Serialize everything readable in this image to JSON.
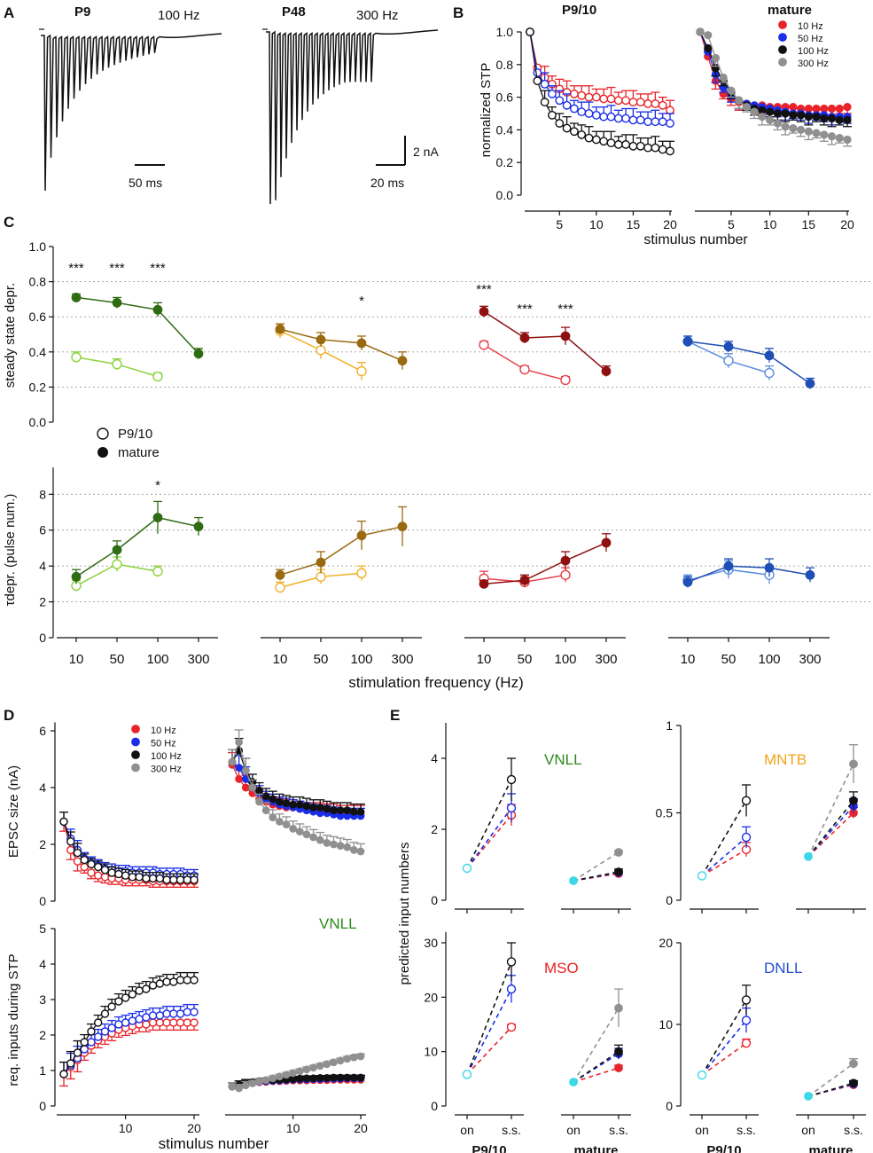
{
  "colors": {
    "vnll_mature": "#2e6b12",
    "vnll_p9": "#8cd23a",
    "mntb_mature": "#9a6a10",
    "mntb_p9": "#f2b02a",
    "mso_mature": "#8f1010",
    "mso_p9": "#e8404a",
    "dnll_mature": "#1f4fb5",
    "dnll_p9": "#5b8ee0",
    "hz10": "#e8242a",
    "hz50": "#1a2ee8",
    "hz100": "#111111",
    "hz300": "#909090",
    "onset": "#3ad8e8"
  },
  "panelA": {
    "letter": "A",
    "left_age": "P9",
    "left_freq": "100 Hz",
    "left_scale": "50 ms",
    "right_age": "P48",
    "right_freq": "300 Hz",
    "right_scale_time": "20 ms",
    "right_scale_amp": "2 nA",
    "left_pulses": 20,
    "right_pulses": 20
  },
  "panelB": {
    "letter": "B",
    "left_title": "P9/10",
    "right_title": "mature",
    "ylabel": "normalized STP",
    "xlabel": "stimulus number",
    "yticks": [
      "0.0",
      "0.2",
      "0.4",
      "0.6",
      "0.8",
      "1.0"
    ],
    "xticks": [
      "5",
      "10",
      "15",
      "20"
    ],
    "legend": [
      "10 Hz",
      "50 Hz",
      "100 Hz",
      "300 Hz"
    ]
  },
  "panelC": {
    "letter": "C",
    "top_ylabel": "steady state depr.",
    "top_yticks": [
      "0.0",
      "0.2",
      "0.4",
      "0.6",
      "0.8",
      "1.0"
    ],
    "bottom_ylabel": "τdepr. (pulse num.)",
    "bottom_yticks": [
      "0",
      "2",
      "4",
      "6",
      "8"
    ],
    "xticks": [
      "10",
      "50",
      "100",
      "300"
    ],
    "xlabel": "stimulation frequency (Hz)",
    "legend": [
      "P9/10",
      "mature"
    ],
    "sig_top": [
      [
        "***",
        "***",
        "***"
      ],
      [
        "*"
      ],
      [
        "***",
        "***",
        "***"
      ]
    ],
    "sig_bottom": "*"
  },
  "panelD": {
    "letter": "D",
    "top_ylabel": "EPSC size (nA)",
    "top_yticks": [
      "0",
      "2",
      "4",
      "6"
    ],
    "bottom_ylabel": "req. inputs during STP",
    "bottom_yticks": [
      "0",
      "1",
      "2",
      "3",
      "4",
      "5"
    ],
    "xticks": [
      "10",
      "20"
    ],
    "xlabel": "stimulus number",
    "legend": [
      "10 Hz",
      "50 Hz",
      "100 Hz",
      "300 Hz"
    ],
    "nucleus": "VNLL"
  },
  "panelE": {
    "letter": "E",
    "ylabel": "predicted input numbers",
    "xticks": [
      "on",
      "s.s."
    ],
    "group_labels": [
      "P9/10",
      "mature"
    ],
    "nuclei": [
      "VNLL",
      "MNTB",
      "MSO",
      "DNLL"
    ],
    "vnll_yticks": [
      "0",
      "2",
      "4"
    ],
    "mntb_yticks": [
      "0",
      "0.5",
      "1"
    ],
    "mso_yticks": [
      "0",
      "10",
      "20",
      "30"
    ],
    "dnll_yticks": [
      "0",
      "10",
      "20"
    ]
  },
  "chart_data": [
    {
      "type": "line",
      "panel": "B-left",
      "title": "P9/10",
      "xlabel": "stimulus number",
      "ylabel": "normalized STP",
      "ylim": [
        0,
        1.0
      ],
      "xlim": [
        1,
        20
      ],
      "series": [
        {
          "name": "10 Hz",
          "values": [
            1.0,
            0.78,
            0.72,
            0.68,
            0.65,
            0.63,
            0.62,
            0.61,
            0.6,
            0.6,
            0.59,
            0.59,
            0.58,
            0.58,
            0.57,
            0.57,
            0.56,
            0.56,
            0.55,
            0.52
          ]
        },
        {
          "name": "50 Hz",
          "values": [
            1.0,
            0.75,
            0.68,
            0.62,
            0.58,
            0.55,
            0.53,
            0.51,
            0.5,
            0.49,
            0.48,
            0.48,
            0.47,
            0.47,
            0.46,
            0.46,
            0.45,
            0.45,
            0.45,
            0.44
          ]
        },
        {
          "name": "100 Hz",
          "values": [
            1.0,
            0.7,
            0.57,
            0.49,
            0.44,
            0.41,
            0.39,
            0.37,
            0.35,
            0.34,
            0.33,
            0.32,
            0.31,
            0.31,
            0.3,
            0.3,
            0.29,
            0.29,
            0.28,
            0.27
          ]
        }
      ]
    },
    {
      "type": "line",
      "panel": "B-right",
      "title": "mature",
      "xlabel": "stimulus number",
      "ylabel": "normalized STP",
      "ylim": [
        0,
        1.0
      ],
      "xlim": [
        1,
        20
      ],
      "series": [
        {
          "name": "10 Hz",
          "values": [
            1.0,
            0.85,
            0.7,
            0.62,
            0.59,
            0.57,
            0.56,
            0.55,
            0.55,
            0.54,
            0.54,
            0.54,
            0.54,
            0.53,
            0.53,
            0.53,
            0.53,
            0.53,
            0.53,
            0.54
          ]
        },
        {
          "name": "50 Hz",
          "values": [
            1.0,
            0.88,
            0.74,
            0.66,
            0.61,
            0.58,
            0.56,
            0.55,
            0.54,
            0.53,
            0.52,
            0.51,
            0.5,
            0.5,
            0.49,
            0.49,
            0.49,
            0.48,
            0.48,
            0.48
          ]
        },
        {
          "name": "100 Hz",
          "values": [
            1.0,
            0.9,
            0.78,
            0.7,
            0.63,
            0.58,
            0.55,
            0.53,
            0.52,
            0.51,
            0.5,
            0.5,
            0.49,
            0.49,
            0.48,
            0.48,
            0.47,
            0.47,
            0.46,
            0.46
          ]
        },
        {
          "name": "300 Hz",
          "values": [
            1.0,
            0.98,
            0.84,
            0.72,
            0.64,
            0.58,
            0.54,
            0.51,
            0.48,
            0.46,
            0.44,
            0.42,
            0.41,
            0.4,
            0.39,
            0.38,
            0.37,
            0.36,
            0.35,
            0.34
          ]
        }
      ]
    },
    {
      "type": "line",
      "panel": "C-top",
      "ylabel": "steady state depr.",
      "ylim": [
        0,
        1.0
      ],
      "categories": [
        "10",
        "50",
        "100",
        "300"
      ],
      "groups": [
        {
          "name": "VNLL",
          "p9": [
            0.37,
            0.33,
            0.26
          ],
          "p9_err": [
            0.03,
            0.03,
            0.02
          ],
          "mature": [
            0.71,
            0.68,
            0.64,
            0.39
          ],
          "mature_err": [
            0.02,
            0.03,
            0.04,
            0.03
          ]
        },
        {
          "name": "MNTB",
          "p9": [
            0.52,
            0.41,
            0.29
          ],
          "p9_err": [
            0.04,
            0.05,
            0.05
          ],
          "mature": [
            0.53,
            0.47,
            0.45,
            0.35
          ],
          "mature_err": [
            0.03,
            0.04,
            0.04,
            0.05
          ]
        },
        {
          "name": "MSO",
          "p9": [
            0.44,
            0.3,
            0.24
          ],
          "p9_err": [
            0.02,
            0.02,
            0.02
          ],
          "mature": [
            0.63,
            0.48,
            0.49,
            0.29
          ],
          "mature_err": [
            0.03,
            0.03,
            0.05,
            0.03
          ]
        },
        {
          "name": "DNLL",
          "p9": [
            0.46,
            0.35,
            0.28
          ],
          "p9_err": [
            0.03,
            0.04,
            0.04
          ],
          "mature": [
            0.46,
            0.43,
            0.38,
            0.22
          ],
          "mature_err": [
            0.03,
            0.03,
            0.04,
            0.03
          ]
        }
      ]
    },
    {
      "type": "line",
      "panel": "C-bottom",
      "ylabel": "τdepr. (pulse num.)",
      "ylim": [
        0,
        9.5
      ],
      "categories": [
        "10",
        "50",
        "100",
        "300"
      ],
      "groups": [
        {
          "name": "VNLL",
          "p9": [
            2.9,
            4.1,
            3.7
          ],
          "p9_err": [
            0.3,
            0.4,
            0.3
          ],
          "mature": [
            3.4,
            4.9,
            6.7,
            6.2
          ],
          "mature_err": [
            0.4,
            0.5,
            0.9,
            0.5
          ]
        },
        {
          "name": "MNTB",
          "p9": [
            2.8,
            3.4,
            3.6
          ],
          "p9_err": [
            0.3,
            0.4,
            0.4
          ],
          "mature": [
            3.5,
            4.2,
            5.7,
            6.2
          ],
          "mature_err": [
            0.3,
            0.6,
            0.8,
            1.1
          ]
        },
        {
          "name": "MSO",
          "p9": [
            3.3,
            3.1,
            3.5
          ],
          "p9_err": [
            0.4,
            0.3,
            0.4
          ],
          "mature": [
            3.0,
            3.2,
            4.3,
            5.3
          ],
          "mature_err": [
            0.2,
            0.3,
            0.5,
            0.5
          ]
        },
        {
          "name": "DNLL",
          "p9": [
            3.2,
            3.8,
            3.5
          ],
          "p9_err": [
            0.3,
            0.5,
            0.5
          ],
          "mature": [
            3.1,
            4.0,
            3.9,
            3.5
          ],
          "mature_err": [
            0.3,
            0.4,
            0.5,
            0.4
          ]
        }
      ]
    },
    {
      "type": "line",
      "panel": "D-top",
      "ylabel": "EPSC size (nA)",
      "xlabel": "stimulus number",
      "ylim": [
        0,
        6.5
      ],
      "p9_series": [
        {
          "name": "10 Hz",
          "values": [
            2.8,
            1.8,
            1.4,
            1.2,
            1.0,
            0.9,
            0.85,
            0.8,
            0.8,
            0.75,
            0.75,
            0.75,
            0.75,
            0.7,
            0.7,
            0.7,
            0.7,
            0.7,
            0.7,
            0.7
          ]
        },
        {
          "name": "50 Hz",
          "values": [
            2.8,
            2.2,
            1.8,
            1.5,
            1.35,
            1.25,
            1.15,
            1.1,
            1.05,
            1.05,
            1.0,
            1.0,
            1.0,
            1.0,
            0.95,
            0.95,
            0.95,
            0.95,
            0.9,
            0.9
          ]
        },
        {
          "name": "100 Hz",
          "values": [
            2.8,
            2.1,
            1.7,
            1.45,
            1.3,
            1.2,
            1.1,
            1.0,
            0.95,
            0.9,
            0.85,
            0.85,
            0.8,
            0.8,
            0.8,
            0.75,
            0.75,
            0.75,
            0.75,
            0.75
          ]
        }
      ],
      "mature_series": [
        {
          "name": "10 Hz",
          "values": [
            4.8,
            4.3,
            4.0,
            3.8,
            3.6,
            3.5,
            3.4,
            3.35,
            3.3,
            3.3,
            3.25,
            3.2,
            3.2,
            3.2,
            3.15,
            3.15,
            3.1,
            3.1,
            3.1,
            3.1
          ]
        },
        {
          "name": "50 Hz",
          "values": [
            4.9,
            4.7,
            4.3,
            4.0,
            3.8,
            3.6,
            3.5,
            3.4,
            3.35,
            3.3,
            3.25,
            3.2,
            3.15,
            3.1,
            3.1,
            3.05,
            3.0,
            3.0,
            3.0,
            3.0
          ]
        },
        {
          "name": "100 Hz",
          "values": [
            4.9,
            5.3,
            4.6,
            4.2,
            3.9,
            3.7,
            3.6,
            3.5,
            3.45,
            3.4,
            3.4,
            3.35,
            3.3,
            3.3,
            3.25,
            3.2,
            3.2,
            3.2,
            3.15,
            3.15
          ]
        },
        {
          "name": "300 Hz",
          "values": [
            4.9,
            5.6,
            4.6,
            4.0,
            3.5,
            3.2,
            2.95,
            2.8,
            2.7,
            2.55,
            2.45,
            2.35,
            2.25,
            2.15,
            2.05,
            2.0,
            1.95,
            1.9,
            1.8,
            1.75
          ]
        }
      ]
    },
    {
      "type": "line",
      "panel": "D-bottom",
      "title": "VNLL",
      "ylabel": "req. inputs during STP",
      "xlabel": "stimulus number",
      "ylim": [
        0,
        5
      ],
      "p9_series": [
        {
          "name": "10 Hz",
          "values": [
            0.9,
            1.1,
            1.3,
            1.5,
            1.7,
            1.85,
            1.95,
            2.05,
            2.15,
            2.2,
            2.25,
            2.3,
            2.3,
            2.35,
            2.35,
            2.35,
            2.35,
            2.35,
            2.35,
            2.35
          ]
        },
        {
          "name": "50 Hz",
          "values": [
            0.9,
            1.15,
            1.35,
            1.6,
            1.8,
            1.95,
            2.1,
            2.2,
            2.3,
            2.35,
            2.4,
            2.45,
            2.5,
            2.55,
            2.55,
            2.6,
            2.6,
            2.6,
            2.65,
            2.65
          ]
        },
        {
          "name": "100 Hz",
          "values": [
            0.9,
            1.2,
            1.5,
            1.8,
            2.1,
            2.35,
            2.6,
            2.8,
            2.95,
            3.05,
            3.15,
            3.25,
            3.3,
            3.4,
            3.45,
            3.5,
            3.5,
            3.55,
            3.55,
            3.55
          ]
        }
      ],
      "mature_series": [
        {
          "name": "10 Hz",
          "values": [
            0.55,
            0.6,
            0.62,
            0.65,
            0.67,
            0.68,
            0.7,
            0.7,
            0.71,
            0.72,
            0.72,
            0.72,
            0.73,
            0.73,
            0.73,
            0.74,
            0.74,
            0.74,
            0.74,
            0.74
          ]
        },
        {
          "name": "50 Hz",
          "values": [
            0.55,
            0.6,
            0.63,
            0.66,
            0.68,
            0.7,
            0.71,
            0.72,
            0.73,
            0.74,
            0.75,
            0.75,
            0.76,
            0.76,
            0.77,
            0.77,
            0.77,
            0.78,
            0.78,
            0.78
          ]
        },
        {
          "name": "100 Hz",
          "values": [
            0.55,
            0.6,
            0.64,
            0.67,
            0.7,
            0.72,
            0.73,
            0.74,
            0.75,
            0.76,
            0.77,
            0.78,
            0.78,
            0.79,
            0.79,
            0.8,
            0.8,
            0.8,
            0.8,
            0.8
          ]
        },
        {
          "name": "300 Hz",
          "values": [
            0.55,
            0.5,
            0.58,
            0.64,
            0.69,
            0.73,
            0.78,
            0.83,
            0.88,
            0.93,
            0.98,
            1.03,
            1.08,
            1.13,
            1.18,
            1.23,
            1.28,
            1.33,
            1.37,
            1.4
          ]
        }
      ]
    },
    {
      "type": "line",
      "panel": "E",
      "ylabel": "predicted input numbers",
      "categories": [
        "on",
        "s.s."
      ],
      "groups": [
        {
          "name": "VNLL",
          "ylim": [
            0,
            5
          ],
          "p9_on": 0.9,
          "p9_ss": {
            "10 Hz": 2.4,
            "50 Hz": 2.6,
            "100 Hz": 3.4
          },
          "p9_ss_err": {
            "10 Hz": 0.3,
            "50 Hz": 0.4,
            "100 Hz": 0.6
          },
          "mature_on": 0.55,
          "mature_ss": {
            "10 Hz": 0.75,
            "50 Hz": 0.78,
            "100 Hz": 0.8,
            "300 Hz": 1.35
          },
          "mature_ss_err": {
            "10 Hz": 0.05,
            "50 Hz": 0.05,
            "100 Hz": 0.08,
            "300 Hz": 0.05
          }
        },
        {
          "name": "MNTB",
          "ylim": [
            0,
            1
          ],
          "p9_on": 0.14,
          "p9_ss": {
            "10 Hz": 0.29,
            "50 Hz": 0.36,
            "100 Hz": 0.57
          },
          "p9_ss_err": {
            "10 Hz": 0.04,
            "50 Hz": 0.06,
            "100 Hz": 0.09
          },
          "mature_on": 0.25,
          "mature_ss": {
            "10 Hz": 0.5,
            "50 Hz": 0.54,
            "100 Hz": 0.57,
            "300 Hz": 0.78
          },
          "mature_ss_err": {
            "10 Hz": 0.03,
            "50 Hz": 0.04,
            "100 Hz": 0.05,
            "300 Hz": 0.11
          }
        },
        {
          "name": "MSO",
          "ylim": [
            0,
            32
          ],
          "p9_on": 5.8,
          "p9_ss": {
            "10 Hz": 14.5,
            "50 Hz": 21.5,
            "100 Hz": 26.5
          },
          "p9_ss_err": {
            "10 Hz": 0.5,
            "50 Hz": 2.5,
            "100 Hz": 3.5
          },
          "mature_on": 4.4,
          "mature_ss": {
            "10 Hz": 7.0,
            "50 Hz": 9.6,
            "100 Hz": 10.0,
            "300 Hz": 18.0
          },
          "mature_ss_err": {
            "10 Hz": 0.5,
            "50 Hz": 1.0,
            "100 Hz": 1.2,
            "300 Hz": 3.5
          }
        },
        {
          "name": "DNLL",
          "ylim": [
            0,
            20
          ],
          "p9_on": 3.8,
          "p9_ss": {
            "10 Hz": 7.7,
            "50 Hz": 10.5,
            "100 Hz": 13.0
          },
          "p9_ss_err": {
            "10 Hz": 0.5,
            "50 Hz": 1.5,
            "100 Hz": 1.8
          },
          "mature_on": 1.2,
          "mature_ss": {
            "10 Hz": 2.6,
            "50 Hz": 2.7,
            "100 Hz": 2.8,
            "300 Hz": 5.2
          },
          "mature_ss_err": {
            "10 Hz": 0.2,
            "50 Hz": 0.3,
            "100 Hz": 0.3,
            "300 Hz": 0.6
          }
        }
      ]
    }
  ]
}
